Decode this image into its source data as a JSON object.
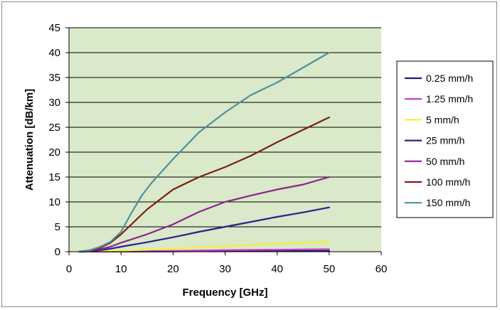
{
  "chart_data": {
    "type": "line",
    "title": "",
    "xlabel": "Frequency [GHz]",
    "ylabel": "Attenuation [dB/km]",
    "xlim": [
      0,
      60
    ],
    "ylim": [
      0,
      45
    ],
    "xticks": [
      "0",
      "10",
      "20",
      "30",
      "40",
      "50",
      "60"
    ],
    "yticks": [
      "0",
      "5",
      "10",
      "15",
      "20",
      "25",
      "30",
      "35",
      "40",
      "45"
    ],
    "grid": "horizontal",
    "legend": "right",
    "plot_background": "#d9e9c9",
    "series": [
      {
        "name": "0.25 mm/h",
        "color": "#1f1f6e",
        "x": [
          2,
          10,
          20,
          30,
          40,
          50
        ],
        "y": [
          0,
          0.02,
          0.05,
          0.08,
          0.12,
          0.15
        ]
      },
      {
        "name": "1.25 mm/h",
        "color": "#cc33cc",
        "x": [
          2,
          10,
          20,
          30,
          40,
          50
        ],
        "y": [
          0,
          0.05,
          0.15,
          0.3,
          0.4,
          0.5
        ]
      },
      {
        "name": "5 mm/h",
        "color": "#f2f23a",
        "x": [
          2,
          10,
          20,
          30,
          40,
          50
        ],
        "y": [
          0,
          0.2,
          0.6,
          1.1,
          1.6,
          2.0
        ]
      },
      {
        "name": "25 mm/h",
        "color": "#2c1f8c",
        "x": [
          2,
          4,
          6,
          8,
          10,
          15,
          20,
          25,
          30,
          35,
          40,
          45,
          50
        ],
        "y": [
          0,
          0.1,
          0.3,
          0.6,
          1.0,
          1.9,
          2.9,
          4.0,
          5.0,
          6.0,
          7.0,
          7.9,
          8.9
        ]
      },
      {
        "name": "50 mm/h",
        "color": "#8e2290",
        "x": [
          2,
          4,
          6,
          8,
          10,
          15,
          20,
          25,
          30,
          35,
          40,
          45,
          50
        ],
        "y": [
          0,
          0.2,
          0.5,
          1.0,
          1.8,
          3.5,
          5.5,
          8.0,
          10.0,
          11.3,
          12.5,
          13.5,
          15.0
        ]
      },
      {
        "name": "100 mm/h",
        "color": "#7a1f14",
        "x": [
          2,
          4,
          6,
          8,
          10,
          12,
          15,
          20,
          25,
          30,
          35,
          40,
          45,
          50
        ],
        "y": [
          0,
          0.3,
          0.8,
          1.8,
          3.5,
          5.5,
          8.5,
          12.5,
          15.0,
          17.0,
          19.3,
          22.0,
          24.5,
          27.0
        ]
      },
      {
        "name": "150 mm/h",
        "color": "#4f8fa0",
        "x": [
          2,
          4,
          6,
          8,
          10,
          12,
          14,
          16,
          20,
          25,
          30,
          35,
          40,
          45,
          50
        ],
        "y": [
          0,
          0.3,
          1.0,
          2.0,
          4.0,
          7.8,
          11.3,
          14.0,
          18.6,
          24.0,
          28.0,
          31.5,
          34.0,
          37.0,
          40.0
        ]
      }
    ]
  }
}
